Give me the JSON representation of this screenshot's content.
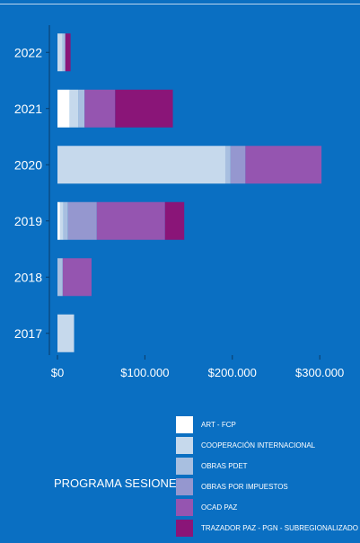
{
  "chart_data": {
    "type": "bar",
    "orientation": "horizontal",
    "stacked": true,
    "categories": [
      "2022",
      "2021",
      "2020",
      "2019",
      "2018",
      "2017"
    ],
    "x_ticks": [
      0,
      100000,
      200000,
      300000
    ],
    "x_tick_labels": [
      "$0",
      "$100.000",
      "$200.000",
      "$300.000"
    ],
    "xlim": [
      0,
      345000
    ],
    "legend_title": "PROGRAMA SESIONES",
    "legend_position": "bottom-right",
    "series": [
      {
        "name": "ART - FCP",
        "color": "#ffffff",
        "values": [
          0,
          14000,
          0,
          3000,
          0,
          0
        ]
      },
      {
        "name": "COOPERACIÓN INTERNACIONAL",
        "color": "#c6d9ec",
        "values": [
          6000,
          10000,
          192000,
          4000,
          0,
          19000
        ]
      },
      {
        "name": "OBRAS PDET",
        "color": "#a8bfe0",
        "values": [
          3000,
          7000,
          6000,
          5000,
          6000,
          0
        ]
      },
      {
        "name": "OBRAS POR IMPUESTOS",
        "color": "#9597cf",
        "values": [
          0,
          0,
          17000,
          33000,
          0,
          0
        ]
      },
      {
        "name": "OCAD PAZ",
        "color": "#9555b0",
        "values": [
          0,
          35000,
          87000,
          78000,
          33000,
          0
        ]
      },
      {
        "name": "TRAZADOR PAZ - PGN - SUBREGIONALIZADO",
        "color": "#8a1578",
        "values": [
          6000,
          66000,
          0,
          22000,
          0,
          0
        ]
      }
    ]
  }
}
